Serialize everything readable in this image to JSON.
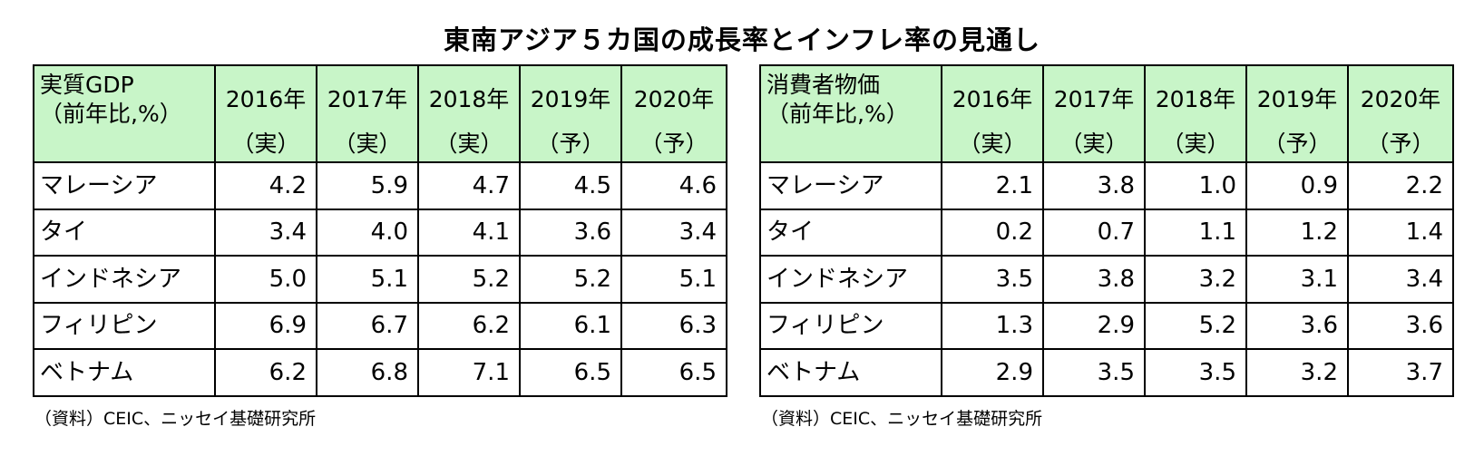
{
  "title": "東南アジア５カ国の成長率とインフレ率の見通し",
  "gdp_table": {
    "header_line1": "実質GDP",
    "header_line2": "（前年比,%）",
    "years": [
      {
        "year": "2016年",
        "kind": "（実）"
      },
      {
        "year": "2017年",
        "kind": "（実）"
      },
      {
        "year": "2018年",
        "kind": "（実）"
      },
      {
        "year": "2019年",
        "kind": "（予）"
      },
      {
        "year": "2020年",
        "kind": "（予）"
      }
    ],
    "rows": [
      {
        "country": "マレーシア",
        "values": [
          "4.2",
          "5.9",
          "4.7",
          "4.5",
          "4.6"
        ]
      },
      {
        "country": "タイ",
        "values": [
          "3.4",
          "4.0",
          "4.1",
          "3.6",
          "3.4"
        ]
      },
      {
        "country": "インドネシア",
        "values": [
          "5.0",
          "5.1",
          "5.2",
          "5.2",
          "5.1"
        ]
      },
      {
        "country": "フィリピン",
        "values": [
          "6.9",
          "6.7",
          "6.2",
          "6.1",
          "6.3"
        ]
      },
      {
        "country": "ベトナム",
        "values": [
          "6.2",
          "6.8",
          "7.1",
          "6.5",
          "6.5"
        ]
      }
    ],
    "source": "（資料）CEIC、ニッセイ基礎研究所"
  },
  "cpi_table": {
    "header_line1": "消費者物価",
    "header_line2": "（前年比,%）",
    "years": [
      {
        "year": "2016年",
        "kind": "（実）"
      },
      {
        "year": "2017年",
        "kind": "（実）"
      },
      {
        "year": "2018年",
        "kind": "（実）"
      },
      {
        "year": "2019年",
        "kind": "（予）"
      },
      {
        "year": "2020年",
        "kind": "（予）"
      }
    ],
    "rows": [
      {
        "country": "マレーシア",
        "values": [
          "2.1",
          "3.8",
          "1.0",
          "0.9",
          "2.2"
        ]
      },
      {
        "country": "タイ",
        "values": [
          "0.2",
          "0.7",
          "1.1",
          "1.2",
          "1.4"
        ]
      },
      {
        "country": "インドネシア",
        "values": [
          "3.5",
          "3.8",
          "3.2",
          "3.1",
          "3.4"
        ]
      },
      {
        "country": "フィリピン",
        "values": [
          "1.3",
          "2.9",
          "5.2",
          "3.6",
          "3.6"
        ]
      },
      {
        "country": "ベトナム",
        "values": [
          "2.9",
          "3.5",
          "3.5",
          "3.2",
          "3.7"
        ]
      }
    ],
    "source": "（資料）CEIC、ニッセイ基礎研究所"
  },
  "colors": {
    "header_background": "#c8f5c8",
    "border": "#000000",
    "text": "#000000"
  }
}
